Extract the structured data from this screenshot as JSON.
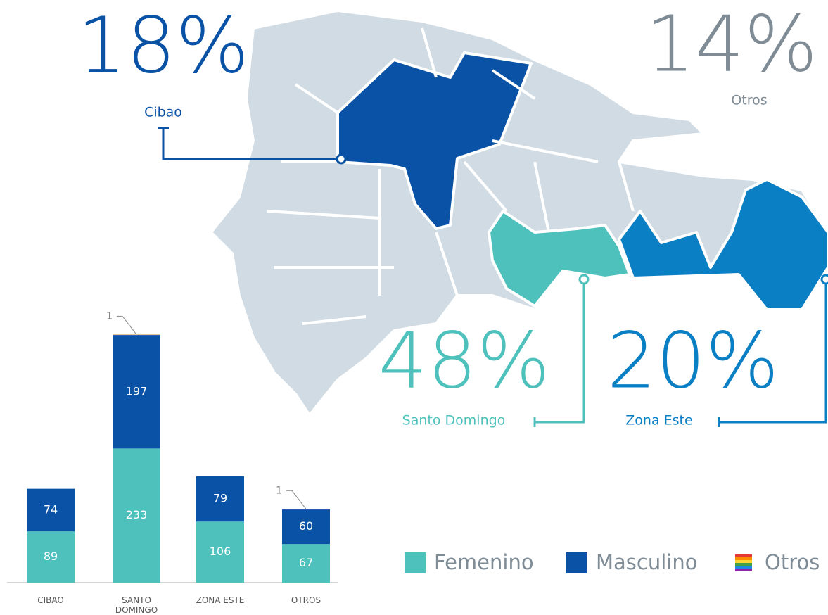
{
  "chart_data": {
    "type": "bar",
    "stacked": true,
    "categories": [
      "CIBAO",
      "SANTO DOMINGO",
      "ZONA ESTE",
      "OTROS"
    ],
    "series": [
      {
        "name": "Femenino",
        "color": "#4fc1bc",
        "values": [
          89,
          233,
          106,
          67
        ]
      },
      {
        "name": "Masculino",
        "color": "#0a52a6",
        "values": [
          74,
          197,
          79,
          60
        ]
      },
      {
        "name": "Otros",
        "colors": [
          "#e53935",
          "#fb8c00",
          "#fdd835",
          "#43a047",
          "#1e88e5",
          "#8e24aa"
        ],
        "values": [
          null,
          1,
          null,
          1
        ]
      }
    ],
    "ylim": [
      0,
      440
    ]
  },
  "map": {
    "regions": [
      {
        "name": "Cibao",
        "percent": "18%",
        "color": "#0a52a6"
      },
      {
        "name": "Otros",
        "percent": "14%",
        "color": "#7f8c96"
      },
      {
        "name": "Santo Domingo",
        "percent": "48%",
        "color": "#4fc1bc"
      },
      {
        "name": "Zona Este",
        "percent": "20%",
        "color": "#0a7fc4"
      }
    ]
  }
}
